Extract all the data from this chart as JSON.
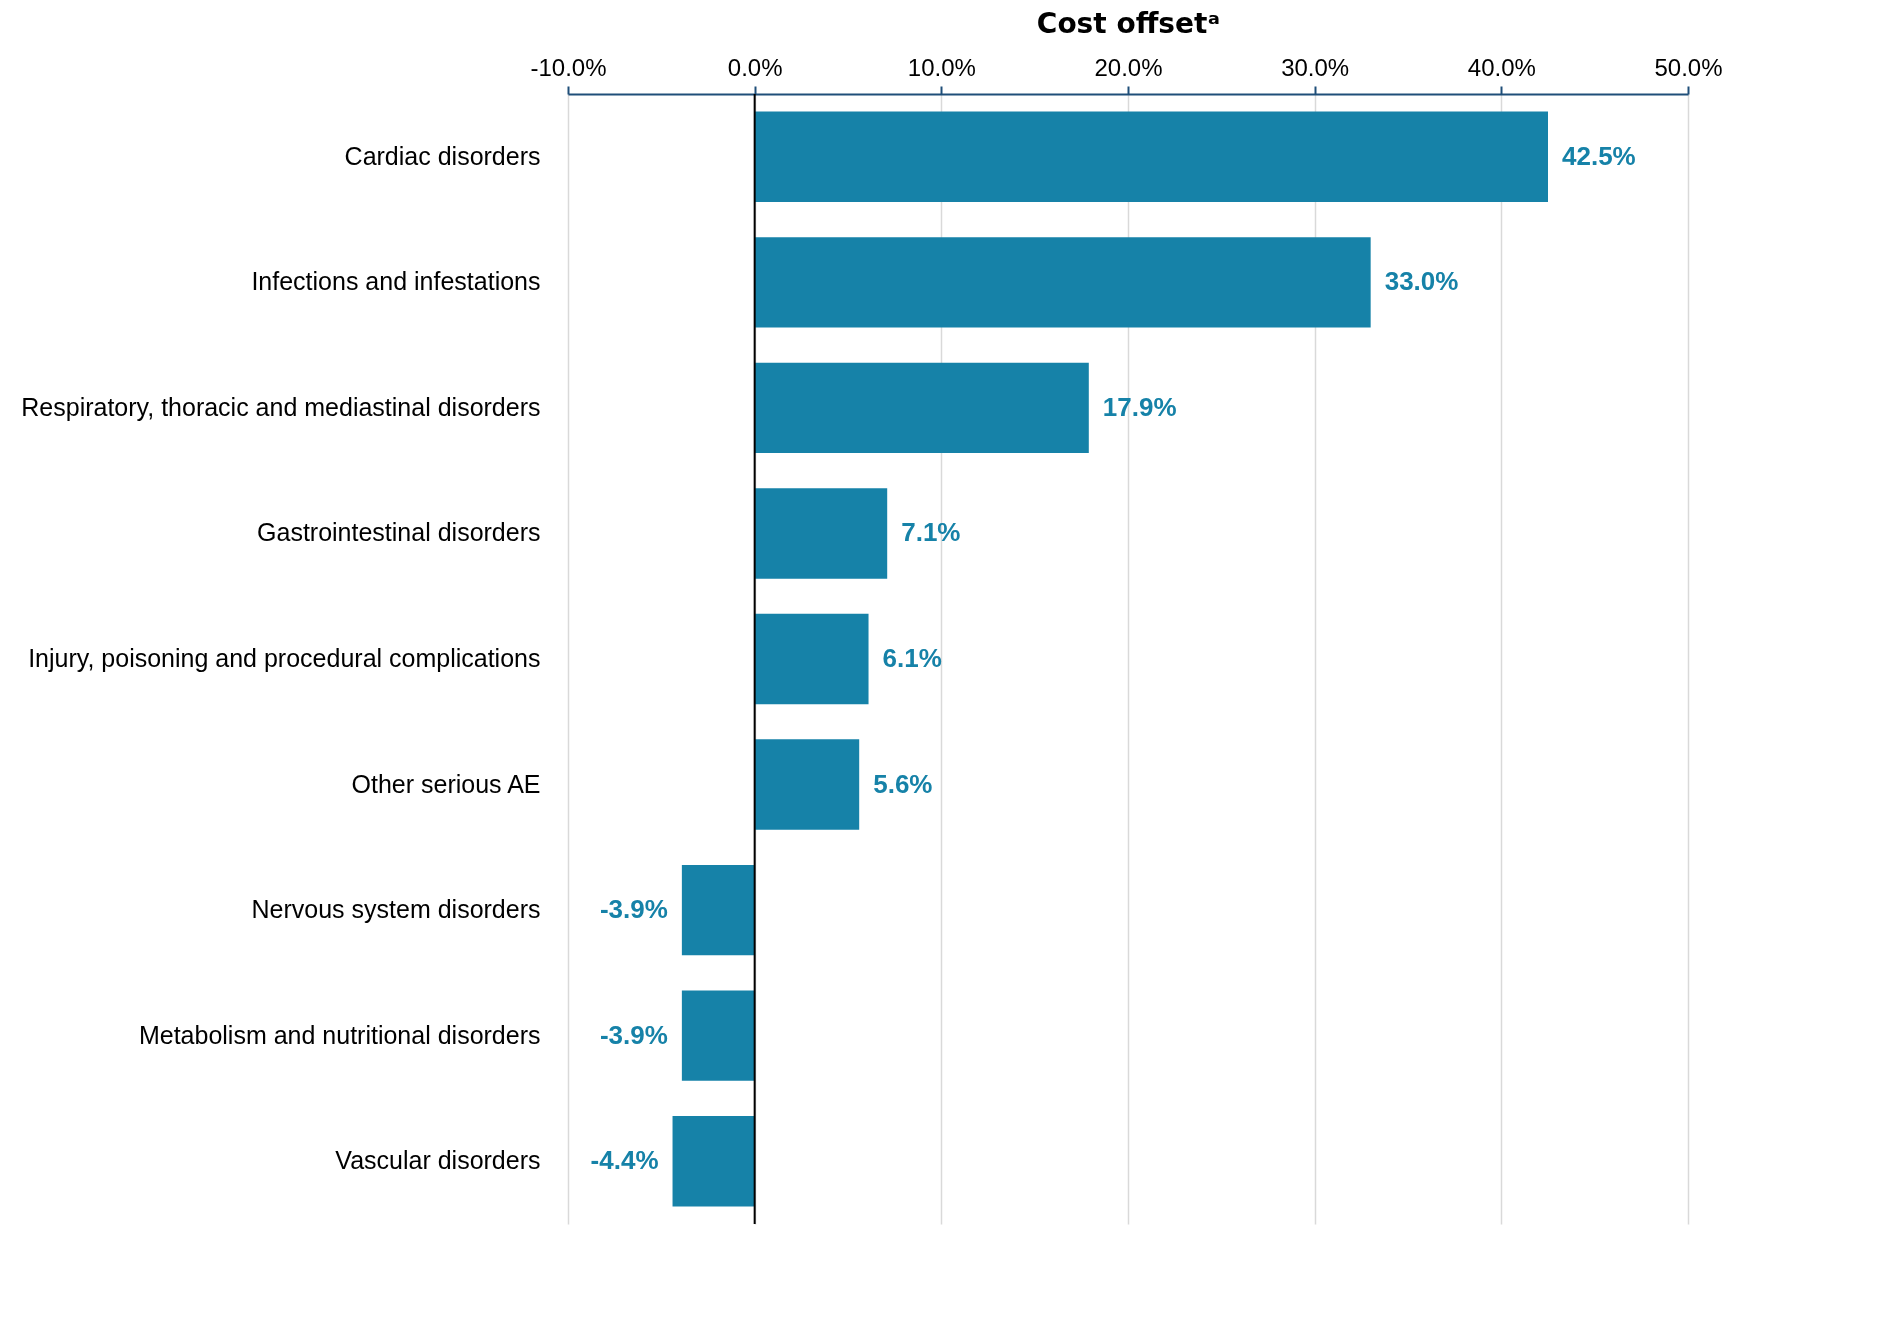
{
  "chart_data": {
    "type": "bar",
    "orientation": "horizontal",
    "xlabel": "Cost offsetᵃ",
    "categories": [
      "Cardiac disorders",
      "Infections and infestations",
      "Respiratory, thoracic and mediastinal disorders",
      "Gastrointestinal disorders",
      "Injury, poisoning and procedural complications",
      "Other serious AE",
      "Nervous system disorders",
      "Metabolism and nutritional disorders",
      "Vascular disorders"
    ],
    "values": [
      42.5,
      33.0,
      17.9,
      7.1,
      6.1,
      5.6,
      -3.9,
      -3.9,
      -4.4
    ],
    "value_labels": [
      "42.5%",
      "33.0%",
      "17.9%",
      "7.1%",
      "6.1%",
      "5.6%",
      "-3.9%",
      "-3.9%",
      "-4.4%"
    ],
    "color": "#1682a8",
    "xlim": [
      -10,
      50
    ],
    "xticks": [
      {
        "value": -10,
        "label": "-10.0%"
      },
      {
        "value": 0,
        "label": "0.0%"
      },
      {
        "value": 10,
        "label": "10.0%"
      },
      {
        "value": 20,
        "label": "20.0%"
      },
      {
        "value": 30,
        "label": "30.0%"
      },
      {
        "value": 40,
        "label": "40.0%"
      },
      {
        "value": 50,
        "label": "50.0%"
      }
    ],
    "grid": "x",
    "ref_lines": [
      {
        "axis": "x",
        "value": 0,
        "color": "#000000"
      }
    ]
  }
}
